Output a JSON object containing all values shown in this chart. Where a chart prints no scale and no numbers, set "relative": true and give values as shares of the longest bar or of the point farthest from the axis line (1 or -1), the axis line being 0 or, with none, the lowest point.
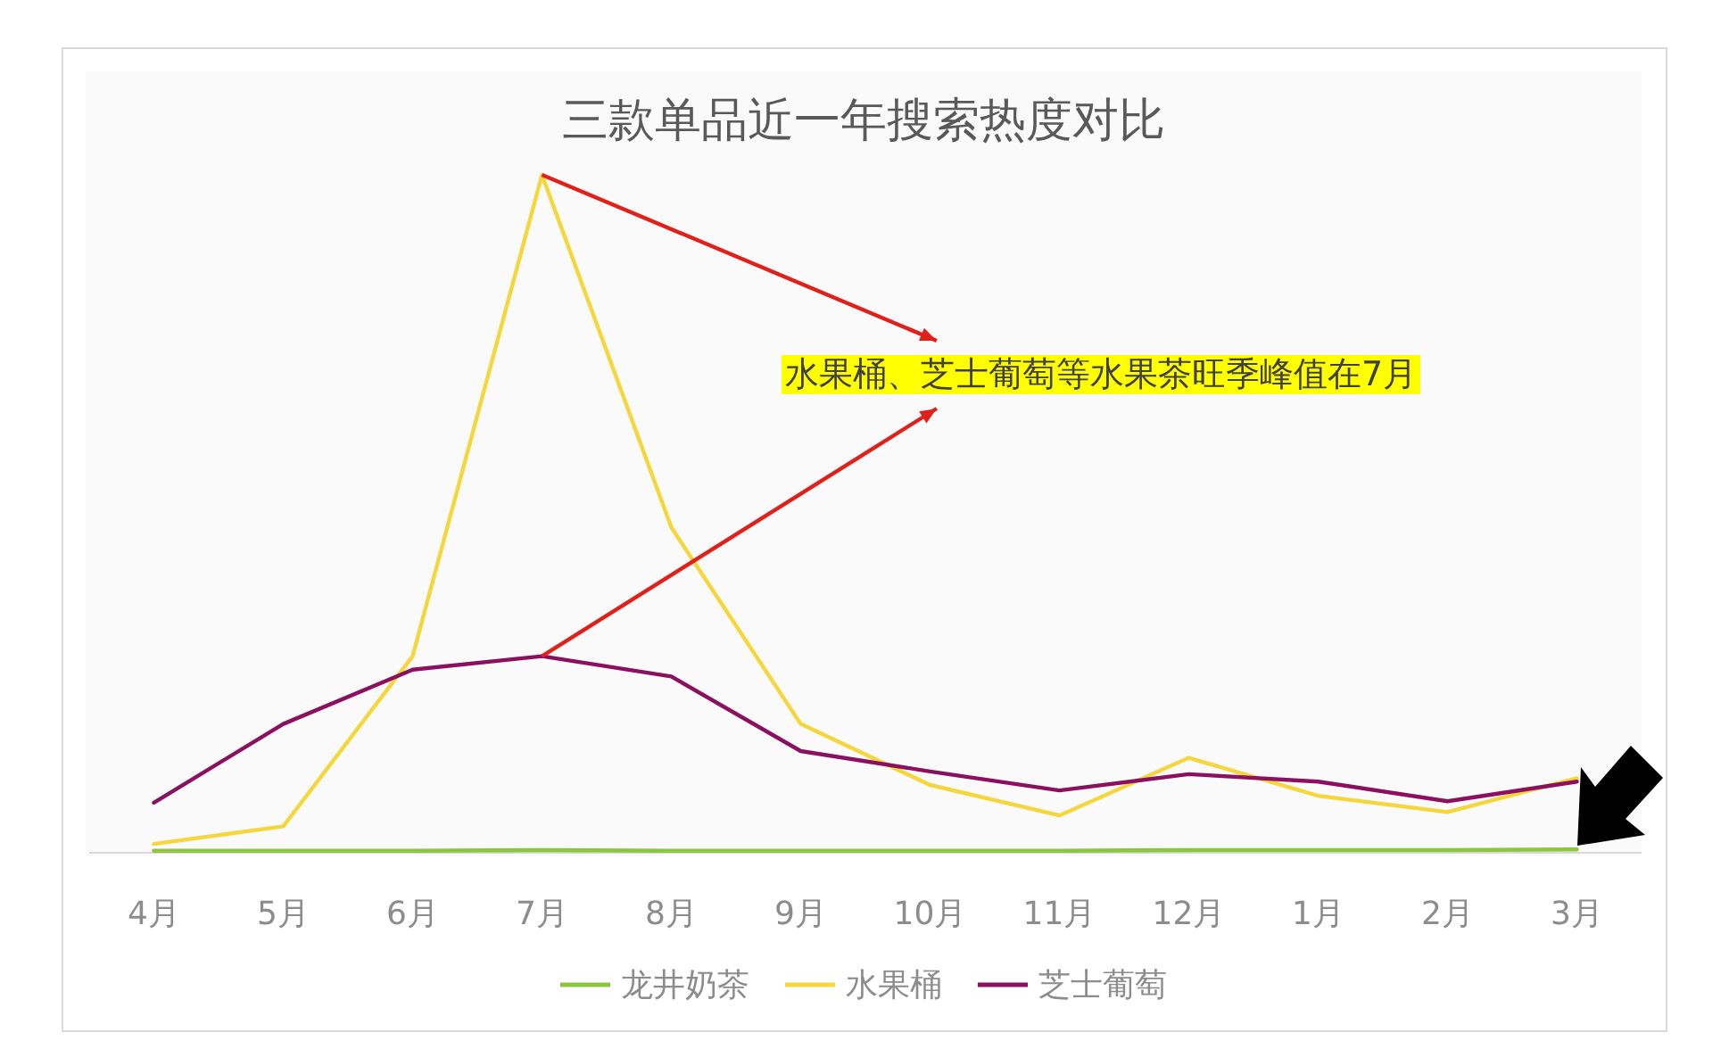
{
  "chart_data": {
    "type": "line",
    "title": "三款单品近一年搜索热度对比",
    "relative": true,
    "legend": "bottom",
    "marker": "none",
    "line_style": "solid",
    "categories": [
      "4月",
      "5月",
      "6月",
      "7月",
      "8月",
      "9月",
      "10月",
      "11月",
      "12月",
      "1月",
      "2月",
      "3月"
    ],
    "series": [
      {
        "name": "龙井奶茶",
        "color": "#8cc63f",
        "values": [
          0.003,
          0.003,
          0.003,
          0.004,
          0.003,
          0.003,
          0.003,
          0.003,
          0.004,
          0.004,
          0.004,
          0.005
        ]
      },
      {
        "name": "水果桶",
        "color": "#f5d63d",
        "values": [
          0.013,
          0.039,
          0.29,
          1,
          0.48,
          0.19,
          0.1,
          0.055,
          0.14,
          0.084,
          0.06,
          0.11
        ]
      },
      {
        "name": "芝士葡萄",
        "color": "#8b1060",
        "values": [
          0.074,
          0.19,
          0.27,
          0.29,
          0.26,
          0.15,
          0.12,
          0.092,
          0.116,
          0.105,
          0.076,
          0.105
        ]
      }
    ],
    "annotations": [
      "水果桶、芝士葡萄等水果茶旺季峰值在7月"
    ]
  }
}
